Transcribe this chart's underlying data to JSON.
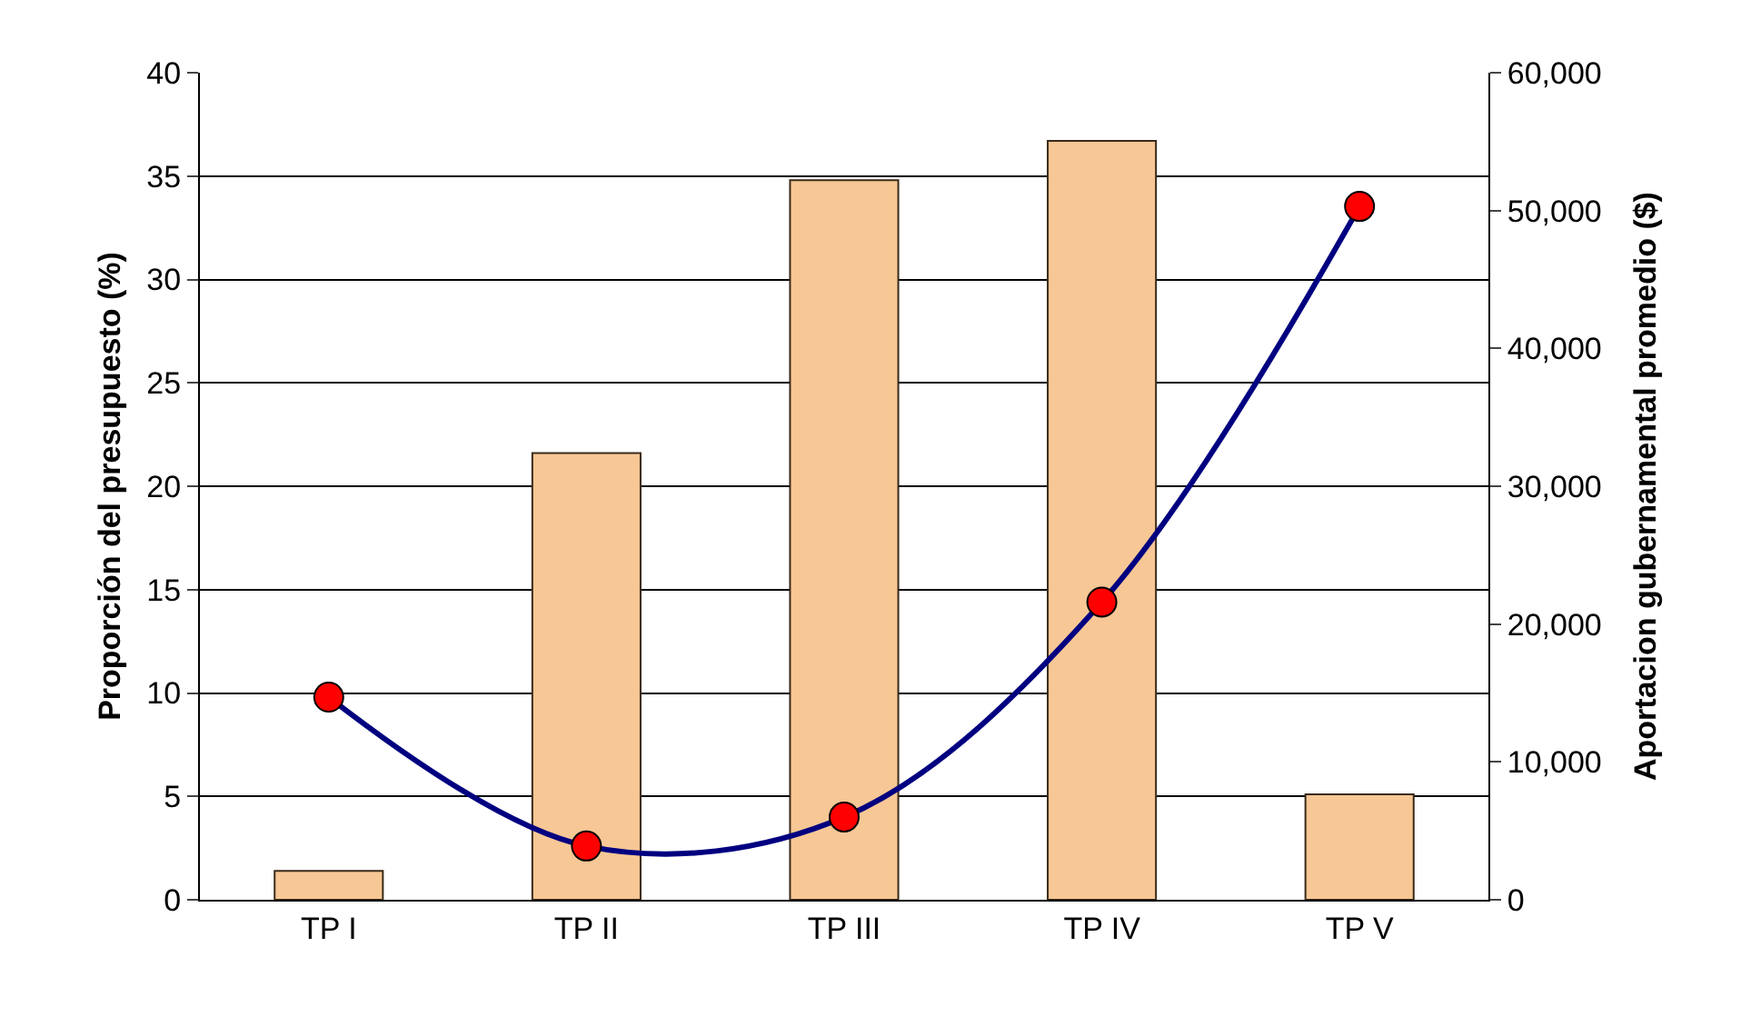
{
  "chart_data": {
    "type": "bar",
    "categories": [
      "TP I",
      "TP II",
      "TP III",
      "TP IV",
      "TP V"
    ],
    "series": [
      {
        "color": "#f7c795",
        "values": [
          1.4,
          21.6,
          34.8,
          36.7,
          5.1
        ]
      },
      {
        "type": "line",
        "axis": "y2",
        "color": "#000080",
        "marker": "circle",
        "values": [
          14700,
          3900,
          6000,
          21600,
          50300
        ]
      }
    ],
    "ylabel": "Proporción del presupuesto (%)",
    "y2label": "Aportacion gubernamental promedio ($)",
    "ylim": [
      0,
      40
    ],
    "yticks": [
      0,
      5,
      10,
      15,
      20,
      25,
      30,
      35,
      40
    ],
    "y2lim": [
      0,
      60000
    ],
    "y2ticks": [
      {
        "value": 0,
        "label": "0"
      },
      {
        "value": 10000,
        "label": "10,000"
      },
      {
        "value": 20000,
        "label": "20,000"
      },
      {
        "value": 30000,
        "label": "30,000"
      },
      {
        "value": 40000,
        "label": "40,000"
      },
      {
        "value": 50000,
        "label": "50,000"
      },
      {
        "value": 60000,
        "label": "60,000"
      }
    ],
    "grid": "y"
  }
}
